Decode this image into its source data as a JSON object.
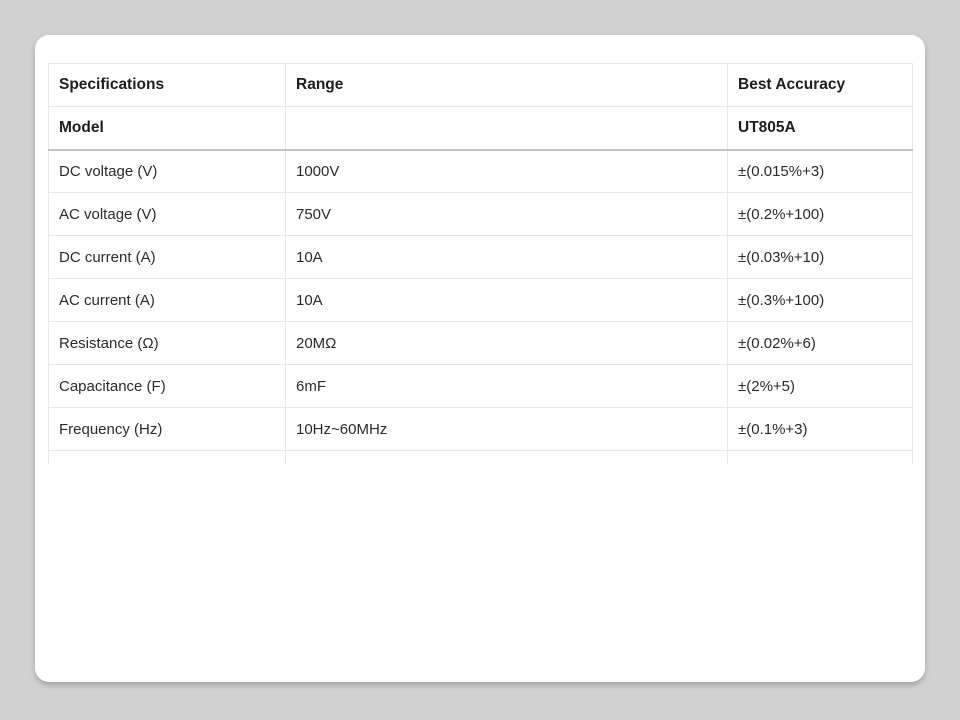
{
  "page": {
    "background_color": "#d1d1d1",
    "card_background": "#ffffff",
    "border_color": "#e8e8e8",
    "divider_color": "#c3c3c3",
    "text_color": "#2b2b2b"
  },
  "table": {
    "columns": {
      "spec": "Specifications",
      "range": "Range",
      "accuracy": "Best Accuracy"
    },
    "model_row": {
      "spec": "Model",
      "range": "",
      "accuracy": "UT805A"
    },
    "rows": [
      {
        "spec": "DC voltage (V)",
        "range": "1000V",
        "accuracy": "±(0.015%+3)"
      },
      {
        "spec": "AC voltage (V)",
        "range": "750V",
        "accuracy": "±(0.2%+100)"
      },
      {
        "spec": "DC current (A)",
        "range": "10A",
        "accuracy": "±(0.03%+10)"
      },
      {
        "spec": "AC current (A)",
        "range": "10A",
        "accuracy": "±(0.3%+100)"
      },
      {
        "spec": "Resistance (Ω)",
        "range": "20MΩ",
        "accuracy": "±(0.02%+6)"
      },
      {
        "spec": "Capacitance (F)",
        "range": "6mF",
        "accuracy": "±(2%+5)"
      },
      {
        "spec": "Frequency (Hz)",
        "range": "10Hz~60MHz",
        "accuracy": "±(0.1%+3)"
      }
    ]
  }
}
